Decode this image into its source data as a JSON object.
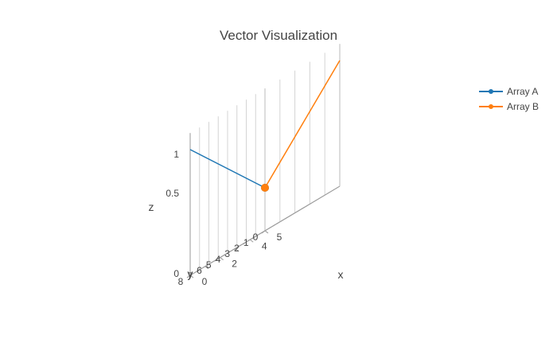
{
  "chart_data": {
    "type": "line",
    "title": "Vector Visualization",
    "axes": {
      "x": {
        "title": "x",
        "range": [
          5,
          0
        ],
        "ticks": [
          "0",
          "2",
          "4",
          "5"
        ]
      },
      "y": {
        "title": "y",
        "range": [
          0,
          8
        ],
        "ticks": [
          "0",
          "1",
          "2",
          "3",
          "4",
          "5",
          "6",
          "7",
          "8"
        ]
      },
      "z": {
        "title": "z",
        "range": [
          0,
          1
        ],
        "ticks": [
          "0",
          "0.5",
          "1"
        ]
      }
    },
    "grid": true,
    "legend_position": "top-right",
    "series": [
      {
        "name": "Array A",
        "color": "#1f77b4",
        "points": [
          {
            "x": 0,
            "y": 0,
            "z": 0
          },
          {
            "x": 0,
            "y": 8,
            "z": 1
          }
        ]
      },
      {
        "name": "Array B",
        "color": "#ff7f0e",
        "points": [
          {
            "x": 0,
            "y": 0,
            "z": 0
          },
          {
            "x": 5,
            "y": 0,
            "z": 1
          }
        ]
      }
    ]
  }
}
